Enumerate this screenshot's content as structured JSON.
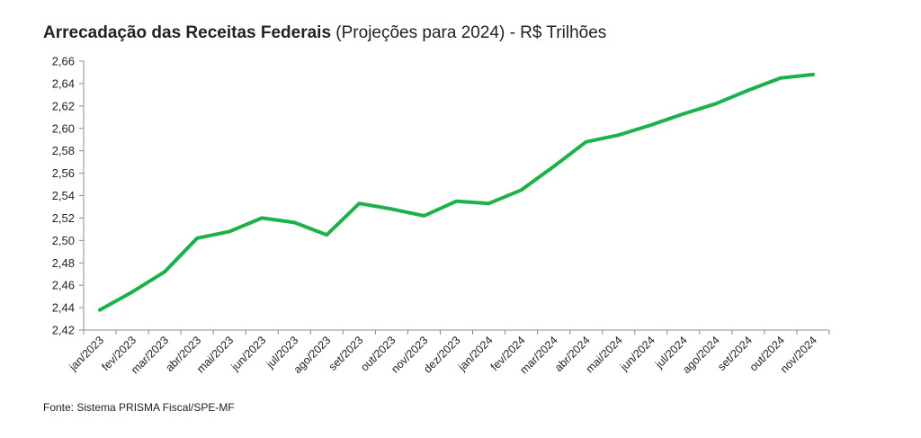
{
  "title": {
    "bold": "Arrecadação das Receitas Federais",
    "regular": " (Projeções para 2024) - R$ Trilhões"
  },
  "source": "Fonte: Sistema PRISMA Fiscal/SPE-MF",
  "chart_data": {
    "type": "line",
    "title": "Arrecadação das Receitas Federais (Projeções para 2024) - R$ Trilhões",
    "xlabel": "",
    "ylabel": "",
    "ylim": [
      2.42,
      2.66
    ],
    "yticks": [
      "2,42",
      "2,44",
      "2,46",
      "2,48",
      "2,50",
      "2,52",
      "2,54",
      "2,56",
      "2,58",
      "2,60",
      "2,62",
      "2,64",
      "2,66"
    ],
    "categories": [
      "jan/2023",
      "fev/2023",
      "mar/2023",
      "abr/2023",
      "mai/2023",
      "jun/2023",
      "jul/2023",
      "ago/2023",
      "set/2023",
      "out/2023",
      "nov/2023",
      "dez/2023",
      "jan/2024",
      "fev/2024",
      "mar/2024",
      "abr/2024",
      "mai/2024",
      "jun/2024",
      "jul/2024",
      "ago/2024",
      "set/2024",
      "out/2024",
      "nov/2024"
    ],
    "series": [
      {
        "name": "Arrecadação",
        "color": "#1DB14B",
        "values": [
          2.438,
          2.454,
          2.472,
          2.502,
          2.508,
          2.52,
          2.516,
          2.505,
          2.533,
          2.528,
          2.522,
          2.535,
          2.533,
          2.545,
          2.566,
          2.588,
          2.594,
          2.603,
          2.613,
          2.622,
          2.634,
          2.645,
          2.648
        ]
      }
    ],
    "grid": false,
    "legend": "none"
  }
}
